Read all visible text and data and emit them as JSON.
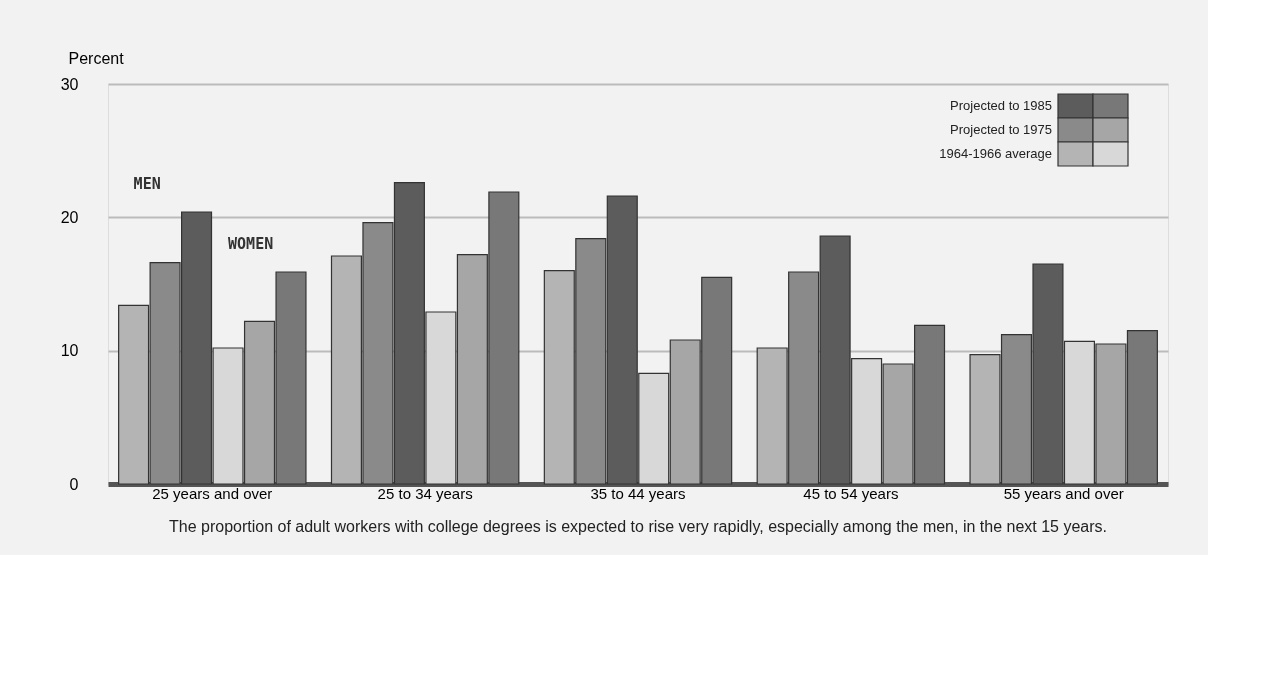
{
  "chart_data": {
    "type": "bar",
    "ylabel": "Percent",
    "categories": [
      "25 years and over",
      "25 to 34 years",
      "35 to 44 years",
      "45 to 54 years",
      "55 years and over"
    ],
    "series": [
      {
        "name": "1964-1966 average",
        "color": "#b4b4b4",
        "values": [
          13.4,
          17.1,
          16.0,
          10.2,
          9.7
        ]
      },
      {
        "name": "Projected to 1975",
        "color": "#8a8a8a",
        "values": [
          16.6,
          19.6,
          18.4,
          15.9,
          11.2
        ]
      },
      {
        "name": "Projected to 1985",
        "color": "#5c5c5c",
        "values": [
          20.4,
          22.6,
          21.6,
          18.6,
          16.5
        ]
      },
      {
        "color": "#d8d8d8",
        "values": [
          10.2,
          12.9,
          8.3,
          9.4,
          10.7
        ]
      },
      {
        "color": "#a6a6a6",
        "values": [
          12.2,
          17.2,
          10.8,
          9.0,
          10.5
        ]
      },
      {
        "color": "#787878",
        "values": [
          15.9,
          21.9,
          15.5,
          11.9,
          11.5
        ]
      }
    ],
    "ylim": [
      0,
      30
    ],
    "yticks": [
      0,
      10,
      20,
      30
    ],
    "grid": "y",
    "legend": "top right",
    "annotations": [
      "MEN",
      "WOMEN",
      "The proportion of adult workers with college degrees is expected to rise very rapidly, especially among the men, in the next 15 years."
    ]
  }
}
